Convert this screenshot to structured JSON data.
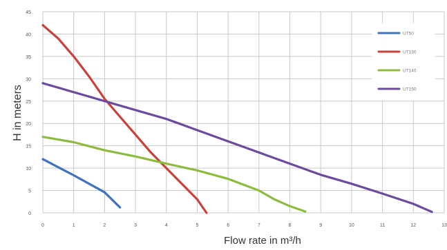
{
  "chart_data": {
    "type": "line",
    "xlabel": "Flow rate in m³/h",
    "ylabel": "H in meters",
    "xlim": [
      0,
      13
    ],
    "ylim": [
      0,
      45
    ],
    "x_ticks": [
      0,
      1,
      2,
      3,
      4,
      5,
      6,
      7,
      8,
      9,
      10,
      11,
      12,
      13
    ],
    "y_ticks": [
      0,
      5,
      10,
      15,
      20,
      25,
      30,
      35,
      40,
      45
    ],
    "grid": true,
    "legend_position": "top-right",
    "series": [
      {
        "name": "UT50",
        "color": "#3f73bd",
        "points": [
          [
            0,
            12
          ],
          [
            0.5,
            10.2
          ],
          [
            1,
            8.4
          ],
          [
            1.5,
            6.5
          ],
          [
            2,
            4.6
          ],
          [
            2.5,
            1.2
          ]
        ]
      },
      {
        "name": "UT130",
        "color": "#c9413b",
        "points": [
          [
            0,
            42
          ],
          [
            0.5,
            39
          ],
          [
            1,
            35
          ],
          [
            1.5,
            30.5
          ],
          [
            2,
            25.5
          ],
          [
            2.5,
            21.5
          ],
          [
            3,
            17.5
          ],
          [
            3.5,
            13.5
          ],
          [
            4,
            10
          ],
          [
            4.5,
            6.5
          ],
          [
            5,
            3
          ],
          [
            5.3,
            0
          ]
        ]
      },
      {
        "name": "UT140",
        "color": "#8dbb3e",
        "points": [
          [
            0,
            17
          ],
          [
            1,
            15.8
          ],
          [
            2,
            14
          ],
          [
            3,
            12.6
          ],
          [
            4,
            11
          ],
          [
            5,
            9.5
          ],
          [
            6,
            7.6
          ],
          [
            7,
            5
          ],
          [
            7.5,
            3
          ],
          [
            8,
            1.5
          ],
          [
            8.5,
            0.3
          ]
        ]
      },
      {
        "name": "UT150",
        "color": "#6c4a9e",
        "points": [
          [
            0,
            29
          ],
          [
            1,
            27
          ],
          [
            2,
            25
          ],
          [
            3,
            23
          ],
          [
            4,
            21
          ],
          [
            5,
            18.5
          ],
          [
            6,
            16
          ],
          [
            7,
            13.5
          ],
          [
            8,
            11
          ],
          [
            9,
            8.5
          ],
          [
            10,
            6.5
          ],
          [
            11,
            4.3
          ],
          [
            12,
            2
          ],
          [
            12.6,
            0.2
          ]
        ]
      }
    ]
  }
}
